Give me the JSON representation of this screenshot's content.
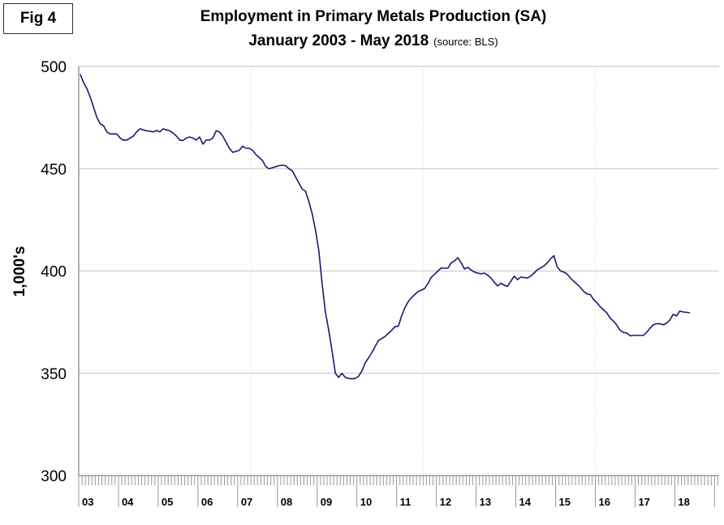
{
  "fig_label": "Fig 4",
  "chart_data": {
    "type": "line",
    "title": "Employment in Primary Metals Production (SA)",
    "subtitle": "January 2003 - May 2018",
    "source": "(source: BLS)",
    "xlabel": "",
    "ylabel": "1,000's",
    "ylim": [
      300,
      500
    ],
    "yticks": [
      "300",
      "350",
      "400",
      "450",
      "500"
    ],
    "year_labels": [
      "03",
      "04",
      "05",
      "06",
      "07",
      "08",
      "09",
      "10",
      "11",
      "12",
      "13",
      "14",
      "15",
      "16",
      "17",
      "18"
    ],
    "start": "2003-01",
    "frequency": "monthly",
    "grid": true,
    "line_color": "#1a1a6e",
    "series": [
      {
        "name": "Primary Metals Employment",
        "values": [
          496,
          492,
          489,
          485,
          480,
          475,
          472,
          471,
          468,
          467,
          467,
          467,
          465,
          464,
          464,
          465,
          466,
          468,
          469.5,
          469,
          468.5,
          468.3,
          468,
          468.7,
          468,
          469.5,
          469,
          468.5,
          467.5,
          466,
          464,
          463.8,
          465,
          465.5,
          465,
          464,
          465.5,
          462,
          464,
          464,
          465,
          468.5,
          468,
          466,
          463,
          460,
          458,
          458.5,
          459,
          461,
          460,
          460,
          459,
          457,
          455.5,
          454,
          451,
          450,
          450.5,
          451,
          451.5,
          451.7,
          451.5,
          450,
          449,
          446,
          443,
          440,
          439,
          434,
          428,
          420,
          410,
          394,
          380,
          371,
          361,
          350,
          348,
          350,
          348,
          347.5,
          347.3,
          347.5,
          348.5,
          351,
          355,
          357.5,
          360,
          363,
          366,
          367,
          368,
          369.5,
          371,
          372.8,
          373,
          378,
          382,
          385,
          387,
          388.5,
          390,
          390.7,
          391.5,
          394,
          397,
          398.5,
          400,
          401.5,
          401.4,
          401.4,
          404,
          405,
          406.5,
          404,
          401,
          401.8,
          400.5,
          399.5,
          399,
          398.6,
          399,
          398,
          396.6,
          394.5,
          392.7,
          394,
          393,
          392.5,
          395,
          397.5,
          395.8,
          397,
          396.8,
          396.6,
          397.5,
          399,
          400.6,
          401.5,
          402.5,
          404,
          406,
          407.5,
          402,
          400,
          399.5,
          398.5,
          396.5,
          395,
          393.5,
          392,
          390,
          388.8,
          388.5,
          386,
          384.5,
          382.5,
          381,
          379.5,
          377,
          375.5,
          373.5,
          371,
          370,
          369.7,
          368.3,
          368.5,
          368.5,
          368.5,
          368.5,
          370,
          372,
          373.7,
          374.2,
          374.2,
          373.7,
          374.5,
          376,
          378.8,
          378,
          380.4,
          380,
          379.8,
          379.6
        ]
      }
    ]
  }
}
